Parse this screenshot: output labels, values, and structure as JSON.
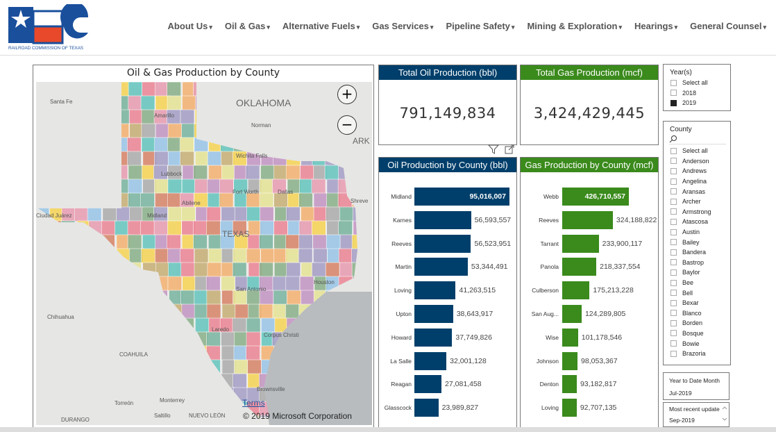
{
  "header": {
    "logo_text": "RRC",
    "logo_caption": "RAILROAD COMMISSION OF TEXAS",
    "nav": [
      "About Us",
      "Oil & Gas",
      "Alternative Fuels",
      "Gas Services",
      "Pipeline Safety",
      "Mining & Exploration",
      "Hearings",
      "General Counsel"
    ]
  },
  "map": {
    "title": "Oil & Gas Production by County",
    "zoom_in": "+",
    "zoom_out": "−",
    "terms": "Terms",
    "copyright": "© 2019 Microsoft Corporation",
    "labels": [
      "OKLAHOMA",
      "TEXAS",
      "ARK",
      "Santa Fe",
      "Amarillo",
      "Norman",
      "Wichita Falls",
      "Lubbock",
      "Fort Worth",
      "Dallas",
      "Shreve",
      "Abilene",
      "Midland",
      "Ciudad Juárez",
      "Chihuahua",
      "San Antonio",
      "Houston",
      "COAHUILA",
      "Laredo",
      "Corpus Christi",
      "Torreón",
      "Monterrey",
      "Saltillo",
      "NUEVO LEÓN",
      "DURANGO",
      "Brownsville"
    ]
  },
  "kpis": [
    {
      "title": "Total Oil Production (bbl)",
      "value": "791,149,834",
      "color": "#003f6b"
    },
    {
      "title": "Total Gas Production (mcf)",
      "value": "3,424,429,445",
      "color": "#3a8a1c"
    }
  ],
  "chart_data": [
    {
      "type": "bar",
      "orientation": "horizontal",
      "title": "Oil Production by County (bbl)",
      "color": "#003f6b",
      "categories": [
        "Midland",
        "Karnes",
        "Reeves",
        "Martin",
        "Loving",
        "Upton",
        "Howard",
        "La Salle",
        "Reagan",
        "Glasscock"
      ],
      "values": [
        95016007,
        56593557,
        56523951,
        53344491,
        41263515,
        38643917,
        37749826,
        32001128,
        27081458,
        23989827
      ],
      "labels": [
        "95,016,007",
        "56,593,557",
        "56,523,951",
        "53,344,491",
        "41,263,515",
        "38,643,917",
        "37,749,826",
        "32,001,128",
        "27,081,458",
        "23,989,827"
      ]
    },
    {
      "type": "bar",
      "orientation": "horizontal",
      "title": "Gas Production by County (mcf)",
      "color": "#3a8a1c",
      "categories": [
        "Webb",
        "Reeves",
        "Tarrant",
        "Panola",
        "Culberson",
        "San Aug...",
        "Wise",
        "Johnson",
        "Denton",
        "Loving"
      ],
      "values": [
        426710557,
        324188822,
        233900117,
        218337554,
        175213228,
        124289805,
        101178546,
        98053367,
        93182817,
        92707135
      ],
      "labels": [
        "426,710,557",
        "324,188,822",
        "233,900,117",
        "218,337,554",
        "175,213,228",
        "124,289,805",
        "101,178,546",
        "98,053,367",
        "93,182,817",
        "92,707,135"
      ]
    }
  ],
  "slicers": {
    "year": {
      "title": "Year(s)",
      "items": [
        {
          "label": "Select all",
          "checked": false
        },
        {
          "label": "2018",
          "checked": false
        },
        {
          "label": "2019",
          "checked": true
        }
      ]
    },
    "county": {
      "title": "County",
      "items": [
        "Select all",
        "Anderson",
        "Andrews",
        "Angelina",
        "Aransas",
        "Archer",
        "Armstrong",
        "Atascosa",
        "Austin",
        "Bailey",
        "Bandera",
        "Bastrop",
        "Baylor",
        "Bee",
        "Bell",
        "Bexar",
        "Blanco",
        "Borden",
        "Bosque",
        "Bowie",
        "Brazoria"
      ]
    },
    "ytd": {
      "title": "Year to Date Month",
      "value": "Jul-2019"
    },
    "update": {
      "title": "Most recent update",
      "value": "Sep-2019"
    }
  }
}
